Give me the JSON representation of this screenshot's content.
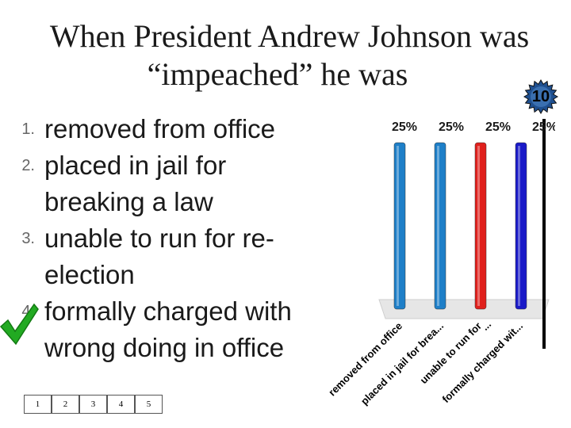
{
  "title": {
    "line1": "When President Andrew Johnson was",
    "line2": "“impeached” he was"
  },
  "countdown": "10",
  "answers": [
    {
      "num": "1.",
      "text": "removed from office"
    },
    {
      "num": "2.",
      "text": "placed in jail for breaking a law"
    },
    {
      "num": "3.",
      "text": "unable to run for re-election"
    },
    {
      "num": "4.",
      "text": "formally charged with wrong doing in office"
    }
  ],
  "correct_answer_icon": "checkmark-icon",
  "keypad": [
    "1",
    "2",
    "3",
    "4",
    "5"
  ],
  "colors": {
    "bar1": "#1e7fc8",
    "bar2": "#1e7fc8",
    "bar3": "#e0201c",
    "bar4": "#1a1ac8",
    "check": "#22aa22",
    "badge": "#1f4f8f"
  },
  "chart_data": {
    "type": "bar",
    "categories": [
      "removed from office",
      "placed in jail for brea...",
      "...",
      "formally charged wit..."
    ],
    "x_tick_labels": [
      "removed from office",
      "placed in jail for brea...",
      "unable to run for",
      "formally charged wit..."
    ],
    "extra_tick_label": "...",
    "values": [
      25,
      25,
      25,
      25
    ],
    "data_labels": [
      "25%",
      "25%",
      "25%",
      "25%"
    ],
    "ylim": [
      0,
      25
    ]
  }
}
